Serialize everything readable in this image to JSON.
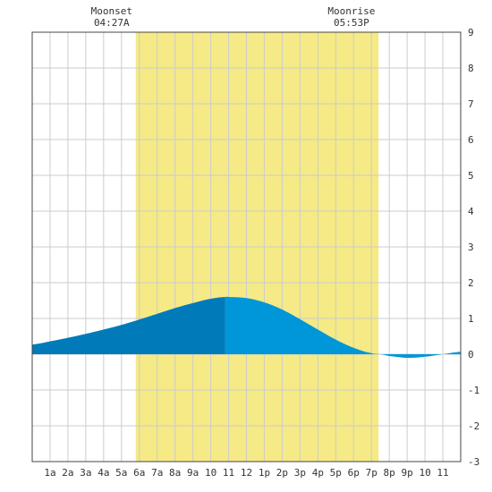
{
  "chart_data": {
    "type": "area",
    "title": "",
    "xlabel": "",
    "ylabel": "",
    "x_unit": "hour of day",
    "xlim": [
      0,
      24
    ],
    "ylim": [
      -3,
      9
    ],
    "x_tick_labels": [
      "1a",
      "2a",
      "3a",
      "4a",
      "5a",
      "6a",
      "7a",
      "8a",
      "9a",
      "10",
      "11",
      "12",
      "1p",
      "2p",
      "3p",
      "4p",
      "5p",
      "6p",
      "7p",
      "8p",
      "9p",
      "10",
      "11"
    ],
    "y_ticks": [
      -3,
      -2,
      -1,
      0,
      1,
      2,
      3,
      4,
      5,
      6,
      7,
      8,
      9
    ],
    "grid": true,
    "daylight": {
      "start_hour": 5.8,
      "end_hour": 19.4,
      "color": "#f5ea85"
    },
    "moon_events": [
      {
        "name": "Moonset",
        "time": "04:27A",
        "hour": 4.45
      },
      {
        "name": "Moonrise",
        "time": "05:53P",
        "hour": 17.88
      }
    ],
    "current_time_hour": 10.8,
    "series": [
      {
        "x": [
          0,
          1,
          2,
          3,
          4,
          5,
          6,
          7,
          8,
          9,
          10,
          10.8,
          11,
          12,
          13,
          14,
          15,
          16,
          17,
          18,
          19,
          19.5,
          20,
          21,
          22,
          23,
          24
        ],
        "y": [
          0.27,
          0.36,
          0.46,
          0.57,
          0.69,
          0.82,
          0.97,
          1.13,
          1.29,
          1.43,
          1.55,
          1.6,
          1.6,
          1.57,
          1.45,
          1.25,
          0.98,
          0.69,
          0.41,
          0.18,
          0.03,
          0.0,
          -0.05,
          -0.1,
          -0.07,
          0.0,
          0.07
        ]
      }
    ],
    "colors": {
      "past": "#007ab8",
      "future": "#0097d8",
      "grid": "#cccccc",
      "frame": "#444444"
    }
  }
}
